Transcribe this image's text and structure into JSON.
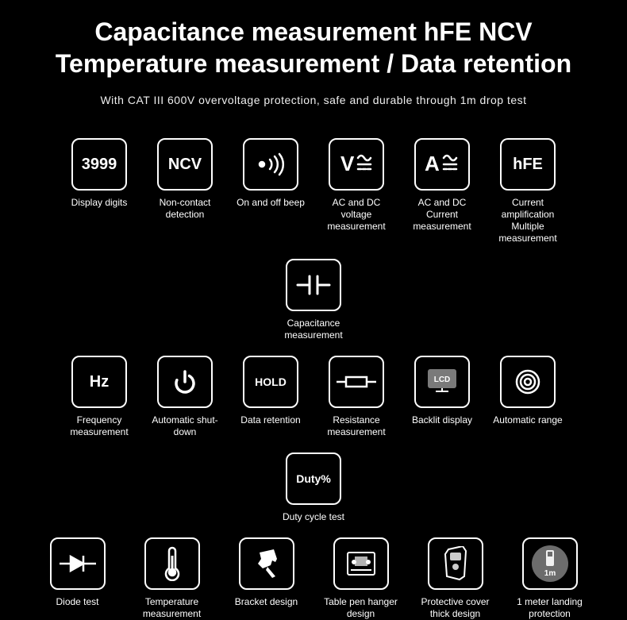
{
  "header": {
    "title_line1": "Capacitance measurement  hFE NCV",
    "title_line2": "Temperature measurement / Data retention",
    "subtitle": "With CAT III 600V overvoltage protection, safe and durable through 1m drop test"
  },
  "features": {
    "row1": [
      {
        "icon_text": "3999",
        "label": "Display digits"
      },
      {
        "icon_text": "NCV",
        "label": "Non-contact detection"
      },
      {
        "svg": "beep",
        "label": "On and off beep"
      },
      {
        "svg": "vacdc",
        "label": "AC and DC voltage measurement"
      },
      {
        "svg": "aacdc",
        "label": "AC and DC Current measurement"
      },
      {
        "icon_text": "hFE",
        "label": "Current amplification Multiple measurement"
      },
      {
        "svg": "cap",
        "label": "Capacitance measurement"
      }
    ],
    "row2": [
      {
        "icon_text": "Hz",
        "label": "Frequency measurement"
      },
      {
        "svg": "power",
        "label": "Automatic shut-down"
      },
      {
        "icon_text": "HOLD",
        "icon_size": "14px",
        "label": "Data retention"
      },
      {
        "svg": "resistor",
        "label": "Resistance measurement"
      },
      {
        "svg": "lcd",
        "label": "Backlit display"
      },
      {
        "svg": "spiral",
        "label": "Automatic range"
      },
      {
        "icon_text": "Duty%",
        "icon_size": "14px",
        "label": "Duty cycle test"
      }
    ],
    "row3": [
      {
        "svg": "diode",
        "label": "Diode test"
      },
      {
        "svg": "temp",
        "label": "Temperature measurement"
      },
      {
        "svg": "bracket",
        "label": "Bracket design"
      },
      {
        "svg": "hanger",
        "label": "Table pen hanger design"
      },
      {
        "svg": "cover",
        "label": "Protective cover thick design"
      },
      {
        "svg": "drop",
        "label": "1 meter landing protection"
      }
    ]
  },
  "colors": {
    "bg": "#000000",
    "fg": "#ffffff",
    "lcd_bg": "#7a7a7a",
    "drop_bg": "#6c6c6c"
  }
}
